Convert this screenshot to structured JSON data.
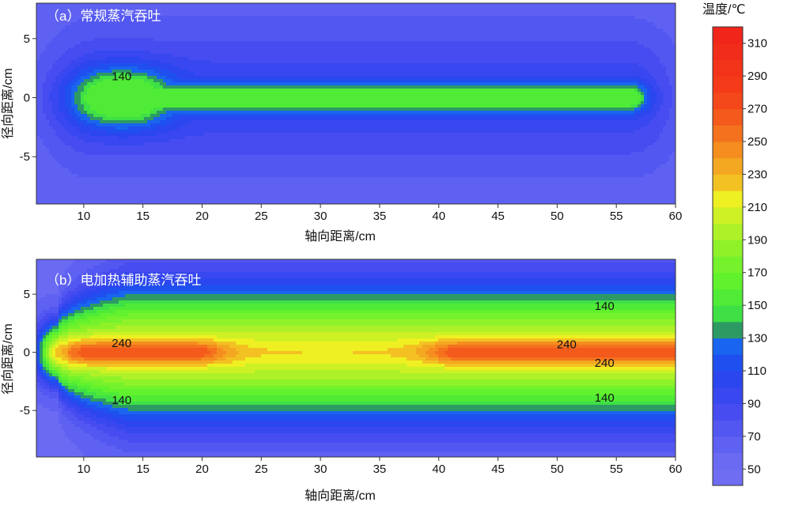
{
  "chart_data": [
    {
      "type": "heatmap",
      "title": "（a）常规蒸汽吞吐",
      "xlabel": "轴向距离/cm",
      "ylabel": "径向距离/cm",
      "xlim": [
        6,
        60
      ],
      "ylim": [
        -9,
        8
      ],
      "xticks": [
        10,
        15,
        20,
        25,
        30,
        35,
        40,
        45,
        50,
        55,
        60
      ],
      "yticks": [
        5,
        0,
        -5
      ],
      "peak_temperature": 150,
      "hot_zone": {
        "x_start": 11,
        "x_end": 18,
        "half_width": 2
      },
      "channel": {
        "x_end": 56,
        "half_width": 1
      },
      "contour_labels": [
        {
          "text": "140",
          "x": 13.2,
          "y": 1.8
        }
      ]
    },
    {
      "type": "heatmap",
      "title": "（b）电加热辅助蒸汽吞吐",
      "xlabel": "轴向距离/cm",
      "ylabel": "径向距离/cm",
      "xlim": [
        6,
        60
      ],
      "ylim": [
        -9,
        8
      ],
      "xticks": [
        10,
        15,
        20,
        25,
        30,
        35,
        40,
        45,
        50,
        55,
        60
      ],
      "yticks": [
        5,
        0,
        -5
      ],
      "peak_temperature": 260,
      "hot_zone": {
        "x_start": 9,
        "x_end": 60,
        "half_width": 4.8
      },
      "core_zones": [
        {
          "x_start": 11,
          "x_end": 19
        },
        {
          "x_start": 42,
          "x_end": 60
        }
      ],
      "contour_labels": [
        {
          "text": "240",
          "x": 13.2,
          "y": 0.8
        },
        {
          "text": "240",
          "x": 50.8,
          "y": 0.7
        },
        {
          "text": "240",
          "x": 54,
          "y": -0.9
        },
        {
          "text": "140",
          "x": 54,
          "y": 4
        },
        {
          "text": "140",
          "x": 13.2,
          "y": -4.1
        },
        {
          "text": "140",
          "x": 54,
          "y": -3.9
        }
      ]
    }
  ],
  "colorbar": {
    "title": "温度/℃",
    "min": 40,
    "max": 320,
    "labels": [
      "310",
      "290",
      "270",
      "250",
      "230",
      "210",
      "190",
      "170",
      "150",
      "130",
      "110",
      "90",
      "70",
      "50"
    ],
    "stops": [
      {
        "t": 50,
        "color": "#6f6ef3"
      },
      {
        "t": 70,
        "color": "#5a5cf2"
      },
      {
        "t": 90,
        "color": "#3f47ef"
      },
      {
        "t": 110,
        "color": "#2446ee"
      },
      {
        "t": 120,
        "color": "#1a58f0"
      },
      {
        "t": 130,
        "color": "#1772ee"
      },
      {
        "t": 135,
        "color": "#2d9a64"
      },
      {
        "t": 145,
        "color": "#3fe045"
      },
      {
        "t": 160,
        "color": "#58f02e"
      },
      {
        "t": 180,
        "color": "#7ff22a"
      },
      {
        "t": 200,
        "color": "#bdf127"
      },
      {
        "t": 215,
        "color": "#eef022"
      },
      {
        "t": 225,
        "color": "#f3c222"
      },
      {
        "t": 240,
        "color": "#f59a20"
      },
      {
        "t": 260,
        "color": "#f4641c"
      },
      {
        "t": 280,
        "color": "#f43d19"
      },
      {
        "t": 320,
        "color": "#f0221a"
      }
    ]
  }
}
